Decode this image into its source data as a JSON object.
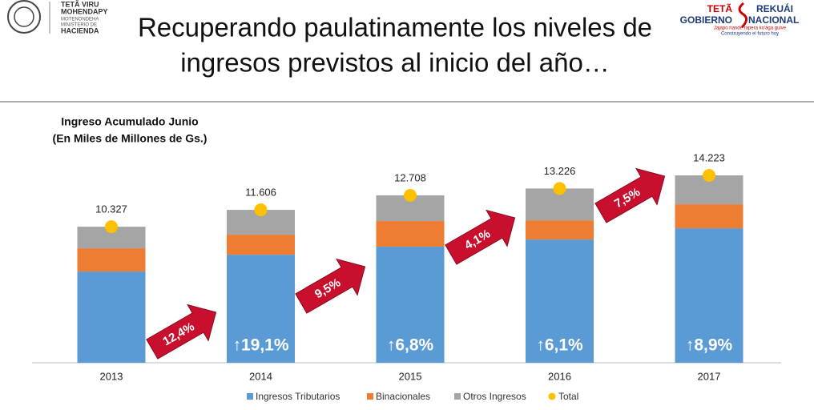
{
  "header": {
    "title_lines": [
      "Recuperando paulatinamente los niveles de",
      "ingresos previstos al inicio del año…"
    ],
    "left_logo": [
      "TETÃ VIRU",
      "MOHENDAPY",
      "MOTENONDEHA",
      "MINISTERIO DE",
      "HACIENDA"
    ],
    "right_logo": [
      "TETÃ",
      "REKUÁI",
      "GOBIERNO",
      "NACIONAL",
      "Jajapo nande rapera ko'ága guive",
      "Construyendo el futuro hoy"
    ]
  },
  "chart_data": {
    "type": "stacked_bar",
    "title": "Ingreso Acumulado Junio",
    "subtitle": "(En Miles de Millones de Gs.)",
    "categories": [
      "2013",
      "2014",
      "2015",
      "2016",
      "2017"
    ],
    "series": [
      {
        "name": "Ingresos Tributarios",
        "color": "#5b9bd5",
        "values": [
          6925,
          8200,
          8810,
          9355,
          10206
        ]
      },
      {
        "name": "Binacionales",
        "color": "#ed7d31",
        "values": [
          1762,
          1520,
          1945,
          1458,
          1823
        ]
      },
      {
        "name": "Otros Ingresos",
        "color": "#a5a5a5",
        "values": [
          1640,
          1886,
          1953,
          2413,
          2194
        ]
      }
    ],
    "total": {
      "name": "Total",
      "color": "#ffc000",
      "values": [
        10327,
        11606,
        12708,
        13226,
        14223
      ],
      "value_labels": [
        "10.327",
        "11.606",
        "12.708",
        "13.226",
        "14.223"
      ]
    },
    "growth_labels": [
      "↑19,1%",
      "↑6,8%",
      "↑6,1%",
      "↑8,9%"
    ],
    "arrow_labels": [
      "12,4%",
      "9,5%",
      "4,1%",
      "7,5%"
    ]
  }
}
